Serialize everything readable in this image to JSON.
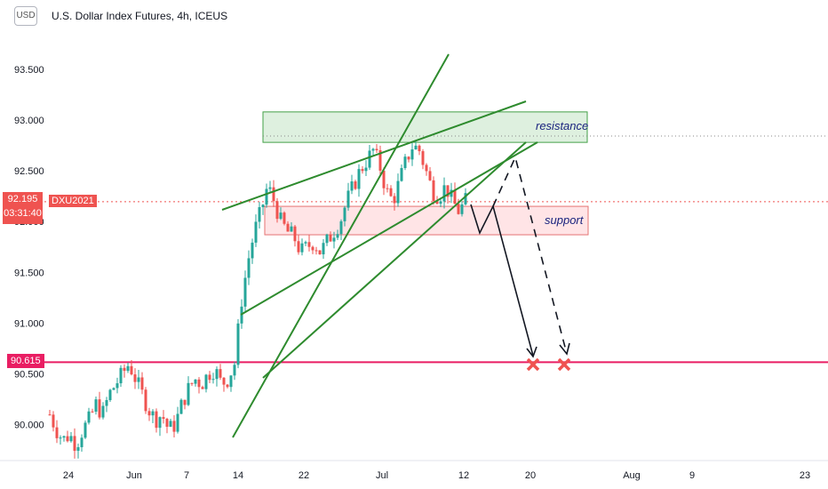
{
  "header": {
    "currency": "USD",
    "title": "U.S. Dollar Index Futures, 4h, ICEUS"
  },
  "price_tags": {
    "last_price": "92.195",
    "countdown": "03:31:40",
    "symbol": "DXU2021",
    "level": "90.615"
  },
  "annotations": {
    "resistance": "resistance",
    "support": "support"
  },
  "colors": {
    "up": "#26a69a",
    "down": "#ef5350",
    "trendline": "#2e8b2e",
    "level": "#e91e63",
    "resistance_fill": "#c8e6c9",
    "support_fill": "#ffcdd2"
  },
  "chart_data": {
    "type": "candlestick",
    "title": "U.S. Dollar Index Futures, 4h, ICEUS",
    "ylim": [
      89.7,
      93.9
    ],
    "y_ticks": [
      "93.500",
      "93.000",
      "92.500",
      "92.000",
      "91.500",
      "91.000",
      "90.500",
      "90.000"
    ],
    "x_ticks": [
      "24",
      "Jun",
      "7",
      "14",
      "22",
      "Jul",
      "12",
      "20",
      "Aug",
      "9",
      "23"
    ],
    "horizontal_level": 90.615,
    "last_price": 92.195,
    "resistance_zone": [
      92.78,
      93.08
    ],
    "support_zone": [
      91.87,
      92.15
    ],
    "price_path": [
      90.1,
      89.95,
      89.85,
      89.9,
      89.8,
      89.95,
      90.05,
      90.2,
      90.1,
      90.3,
      90.4,
      90.5,
      90.6,
      90.45,
      90.3,
      90.15,
      90.05,
      90.1,
      89.95,
      90.0,
      90.2,
      90.35,
      90.45,
      90.4,
      90.5,
      90.55,
      90.4,
      90.45,
      90.6,
      91.2,
      91.6,
      91.9,
      92.1,
      92.35,
      92.2,
      92.0,
      91.9,
      91.85,
      91.7,
      91.75,
      91.8,
      91.7,
      91.8,
      91.9,
      92.0,
      92.2,
      92.35,
      92.5,
      92.6,
      92.7,
      92.55,
      92.3,
      92.2,
      92.4,
      92.6,
      92.75,
      92.7,
      92.5,
      92.3,
      92.25,
      92.35,
      92.2,
      92.1,
      92.2
    ]
  }
}
